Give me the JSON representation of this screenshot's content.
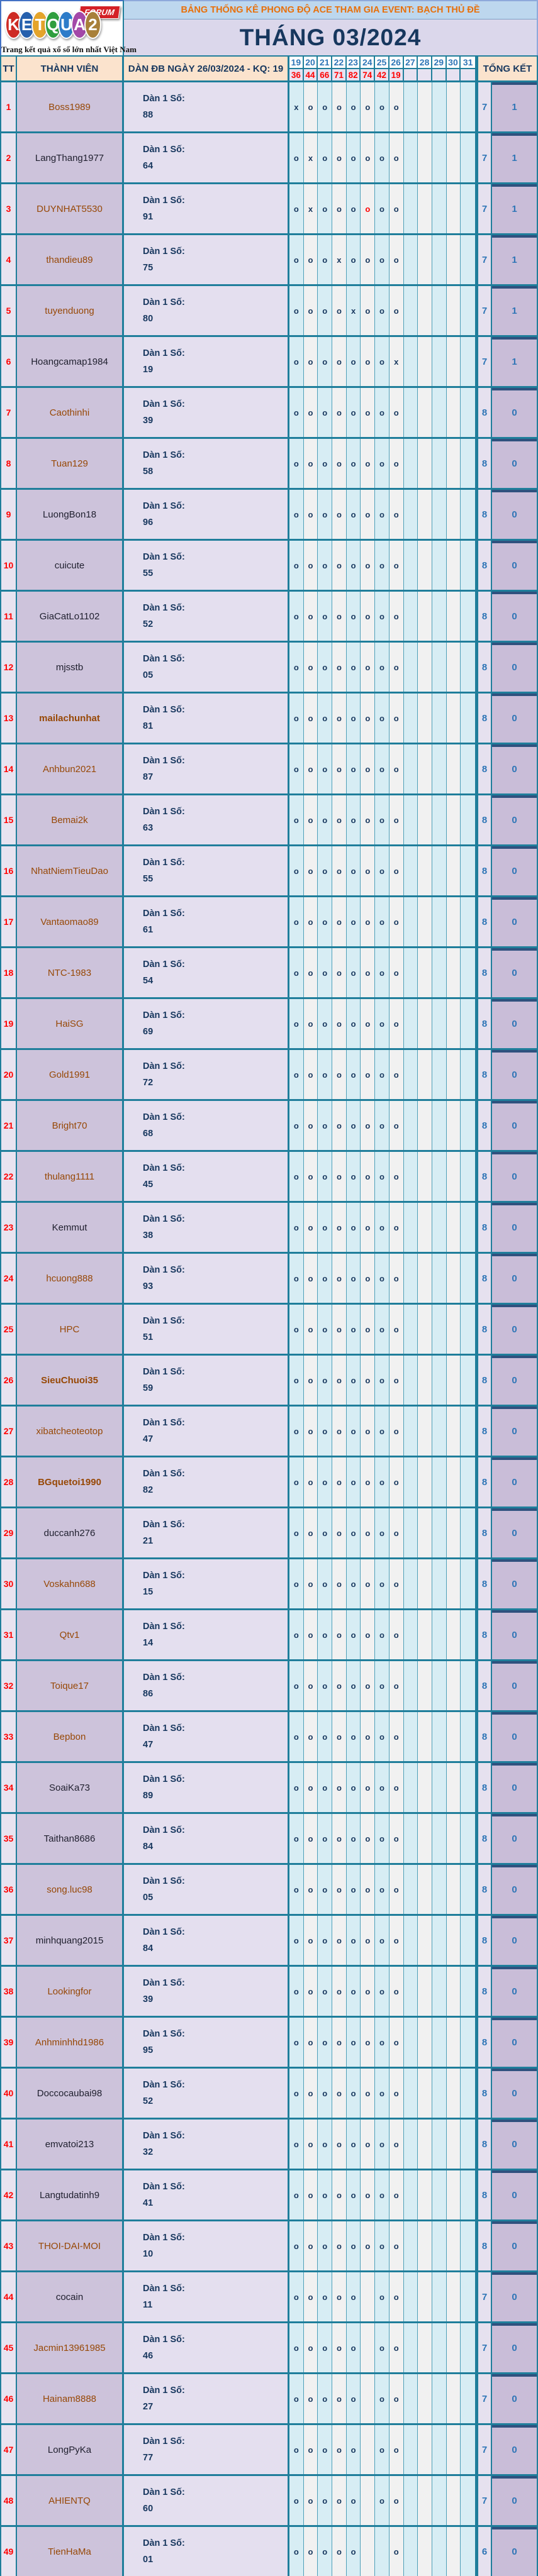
{
  "logo": {
    "letters": [
      {
        "char": "K",
        "color": "#CE2B24"
      },
      {
        "char": "E",
        "color": "#2660AD"
      },
      {
        "char": "T",
        "color": "#E4A42B"
      },
      {
        "char": "Q",
        "color": "#2F9E3E"
      },
      {
        "char": "U",
        "color": "#2D7CC9"
      },
      {
        "char": "A",
        "color": "#A348A8"
      },
      {
        "char": "2",
        "color": "#A8803A"
      }
    ],
    "forum_label": "FORUM",
    "tagline": "Trang kết quả xổ số lớn nhất Việt Nam"
  },
  "banner": {
    "title": "BẢNG THỐNG KÊ PHONG ĐỘ ACE THAM GIA EVENT: BẠCH  THỦ ĐỀ",
    "month": "THÁNG 03/2024"
  },
  "colors": {
    "accent_border": "#1F7E9B",
    "header_bg": "#FBE3CD",
    "banner_title_bg": "#BDD7EE",
    "banner_title_text": "#E8700A",
    "month_bg": "#DBD7EB",
    "navy_text": "#17375E",
    "blue_number": "#2E75B6",
    "red_text": "#FF0000",
    "member_bg": "#CDC3DB",
    "brown": "#974806",
    "dark": "#1F1F2E"
  },
  "table": {
    "headers": {
      "tt": "TT",
      "member": "THÀNH VIÊN",
      "dan": "DÀN ĐB NGÀY 26/03/2024 - KQ: 19",
      "tongket": "TỔNG KẾT"
    },
    "days": [
      "19",
      "20",
      "21",
      "22",
      "23",
      "24",
      "25",
      "26",
      "27",
      "28",
      "29",
      "30",
      "31"
    ],
    "results": [
      "36",
      "44",
      "66",
      "71",
      "82",
      "74",
      "42",
      "19",
      "",
      "",
      "",
      "",
      ""
    ],
    "dan_label": "Dàn 1 Số:",
    "rows": [
      {
        "tt": "1",
        "member": "Boss1989",
        "color": "brown",
        "dan": "88",
        "marks": [
          "x",
          "o",
          "o",
          "o",
          "o",
          "o",
          "o",
          "o"
        ],
        "red": [],
        "tong1": "7",
        "tong2": "1"
      },
      {
        "tt": "2",
        "member": "LangThang1977",
        "color": "dark",
        "dan": "64",
        "marks": [
          "o",
          "x",
          "o",
          "o",
          "o",
          "o",
          "o",
          "o"
        ],
        "red": [],
        "tong1": "7",
        "tong2": "1"
      },
      {
        "tt": "3",
        "member": "DUYNHAT5530",
        "color": "brown",
        "dan": "91",
        "marks": [
          "o",
          "x",
          "o",
          "o",
          "o",
          "o",
          "o",
          "o"
        ],
        "red": [
          5
        ],
        "tong1": "7",
        "tong2": "1"
      },
      {
        "tt": "4",
        "member": "thandieu89",
        "color": "brown",
        "dan": "75",
        "marks": [
          "o",
          "o",
          "o",
          "x",
          "o",
          "o",
          "o",
          "o"
        ],
        "red": [],
        "tong1": "7",
        "tong2": "1"
      },
      {
        "tt": "5",
        "member": "tuyenduong",
        "color": "brown",
        "dan": "80",
        "marks": [
          "o",
          "o",
          "o",
          "o",
          "x",
          "o",
          "o",
          "o"
        ],
        "red": [],
        "tong1": "7",
        "tong2": "1"
      },
      {
        "tt": "6",
        "member": "Hoangcamap1984",
        "color": "dark",
        "dan": "19",
        "marks": [
          "o",
          "o",
          "o",
          "o",
          "o",
          "o",
          "o",
          "x"
        ],
        "red": [],
        "tong1": "7",
        "tong2": "1"
      },
      {
        "tt": "7",
        "member": "Caothinhi",
        "color": "brown",
        "dan": "39",
        "marks": [
          "o",
          "o",
          "o",
          "o",
          "o",
          "o",
          "o",
          "o"
        ],
        "red": [],
        "tong1": "8",
        "tong2": "0"
      },
      {
        "tt": "8",
        "member": "Tuan129",
        "color": "brown",
        "dan": "58",
        "marks": [
          "o",
          "o",
          "o",
          "o",
          "o",
          "o",
          "o",
          "o"
        ],
        "red": [],
        "tong1": "8",
        "tong2": "0"
      },
      {
        "tt": "9",
        "member": "LuongBon18",
        "color": "dark",
        "dan": "96",
        "marks": [
          "o",
          "o",
          "o",
          "o",
          "o",
          "o",
          "o",
          "o"
        ],
        "red": [],
        "tong1": "8",
        "tong2": "0"
      },
      {
        "tt": "10",
        "member": "cuicute",
        "color": "dark",
        "dan": "55",
        "marks": [
          "o",
          "o",
          "o",
          "o",
          "o",
          "o",
          "o",
          "o"
        ],
        "red": [],
        "tong1": "8",
        "tong2": "0"
      },
      {
        "tt": "11",
        "member": "GiaCatLo1102",
        "color": "dark",
        "dan": "52",
        "marks": [
          "o",
          "o",
          "o",
          "o",
          "o",
          "o",
          "o",
          "o"
        ],
        "red": [],
        "tong1": "8",
        "tong2": "0"
      },
      {
        "tt": "12",
        "member": "mjsstb",
        "color": "dark",
        "dan": "05",
        "marks": [
          "o",
          "o",
          "o",
          "o",
          "o",
          "o",
          "o",
          "o"
        ],
        "red": [],
        "tong1": "8",
        "tong2": "0"
      },
      {
        "tt": "13",
        "member": "mailachunhat",
        "color": "brown",
        "bold": true,
        "dan": "81",
        "marks": [
          "o",
          "o",
          "o",
          "o",
          "o",
          "o",
          "o",
          "o"
        ],
        "red": [],
        "tong1": "8",
        "tong2": "0"
      },
      {
        "tt": "14",
        "member": "Anhbun2021",
        "color": "brown",
        "dan": "87",
        "marks": [
          "o",
          "o",
          "o",
          "o",
          "o",
          "o",
          "o",
          "o"
        ],
        "red": [],
        "tong1": "8",
        "tong2": "0"
      },
      {
        "tt": "15",
        "member": "Bemai2k",
        "color": "brown",
        "dan": "63",
        "marks": [
          "o",
          "o",
          "o",
          "o",
          "o",
          "o",
          "o",
          "o"
        ],
        "red": [],
        "tong1": "8",
        "tong2": "0"
      },
      {
        "tt": "16",
        "member": "NhatNiemTieuDao",
        "color": "brown",
        "dan": "55",
        "marks": [
          "o",
          "o",
          "o",
          "o",
          "o",
          "o",
          "o",
          "o"
        ],
        "red": [],
        "tong1": "8",
        "tong2": "0"
      },
      {
        "tt": "17",
        "member": "Vantaomao89",
        "color": "brown",
        "dan": "61",
        "marks": [
          "o",
          "o",
          "o",
          "o",
          "o",
          "o",
          "o",
          "o"
        ],
        "red": [],
        "tong1": "8",
        "tong2": "0"
      },
      {
        "tt": "18",
        "member": "NTC-1983",
        "color": "brown",
        "dan": "54",
        "marks": [
          "o",
          "o",
          "o",
          "o",
          "o",
          "o",
          "o",
          "o"
        ],
        "red": [],
        "tong1": "8",
        "tong2": "0"
      },
      {
        "tt": "19",
        "member": "HaiSG",
        "color": "brown",
        "dan": "69",
        "marks": [
          "o",
          "o",
          "o",
          "o",
          "o",
          "o",
          "o",
          "o"
        ],
        "red": [],
        "tong1": "8",
        "tong2": "0"
      },
      {
        "tt": "20",
        "member": "Gold1991",
        "color": "brown",
        "dan": "72",
        "marks": [
          "o",
          "o",
          "o",
          "o",
          "o",
          "o",
          "o",
          "o"
        ],
        "red": [],
        "tong1": "8",
        "tong2": "0"
      },
      {
        "tt": "21",
        "member": "Bright70",
        "color": "brown",
        "dan": "68",
        "marks": [
          "o",
          "o",
          "o",
          "o",
          "o",
          "o",
          "o",
          "o"
        ],
        "red": [],
        "tong1": "8",
        "tong2": "0"
      },
      {
        "tt": "22",
        "member": "thulang1111",
        "color": "brown",
        "dan": "45",
        "marks": [
          "o",
          "o",
          "o",
          "o",
          "o",
          "o",
          "o",
          "o"
        ],
        "red": [],
        "tong1": "8",
        "tong2": "0"
      },
      {
        "tt": "23",
        "member": "Kemmut",
        "color": "dark",
        "dan": "38",
        "marks": [
          "o",
          "o",
          "o",
          "o",
          "o",
          "o",
          "o",
          "o"
        ],
        "red": [],
        "tong1": "8",
        "tong2": "0"
      },
      {
        "tt": "24",
        "member": "hcuong888",
        "color": "brown",
        "dan": "93",
        "marks": [
          "o",
          "o",
          "o",
          "o",
          "o",
          "o",
          "o",
          "o"
        ],
        "red": [],
        "tong1": "8",
        "tong2": "0"
      },
      {
        "tt": "25",
        "member": "HPC",
        "color": "brown",
        "dan": "51",
        "marks": [
          "o",
          "o",
          "o",
          "o",
          "o",
          "o",
          "o",
          "o"
        ],
        "red": [],
        "tong1": "8",
        "tong2": "0"
      },
      {
        "tt": "26",
        "member": "SieuChuoi35",
        "color": "brown",
        "bold": true,
        "dan": "59",
        "marks": [
          "o",
          "o",
          "o",
          "o",
          "o",
          "o",
          "o",
          "o"
        ],
        "red": [],
        "tong1": "8",
        "tong2": "0"
      },
      {
        "tt": "27",
        "member": "xibatcheoteotop",
        "color": "brown",
        "dan": "47",
        "marks": [
          "o",
          "o",
          "o",
          "o",
          "o",
          "o",
          "o",
          "o"
        ],
        "red": [],
        "tong1": "8",
        "tong2": "0"
      },
      {
        "tt": "28",
        "member": "BGquetoi1990",
        "color": "brown",
        "bold": true,
        "dan": "82",
        "marks": [
          "o",
          "o",
          "o",
          "o",
          "o",
          "o",
          "o",
          "o"
        ],
        "red": [],
        "tong1": "8",
        "tong2": "0"
      },
      {
        "tt": "29",
        "member": "duccanh276",
        "color": "dark",
        "dan": "21",
        "marks": [
          "o",
          "o",
          "o",
          "o",
          "o",
          "o",
          "o",
          "o"
        ],
        "red": [],
        "tong1": "8",
        "tong2": "0"
      },
      {
        "tt": "30",
        "member": "Voskahn688",
        "color": "brown",
        "dan": "15",
        "marks": [
          "o",
          "o",
          "o",
          "o",
          "o",
          "o",
          "o",
          "o"
        ],
        "red": [],
        "tong1": "8",
        "tong2": "0"
      },
      {
        "tt": "31",
        "member": "Qtv1",
        "color": "brown",
        "dan": "14",
        "marks": [
          "o",
          "o",
          "o",
          "o",
          "o",
          "o",
          "o",
          "o"
        ],
        "red": [],
        "tong1": "8",
        "tong2": "0"
      },
      {
        "tt": "32",
        "member": "Toique17",
        "color": "brown",
        "dan": "86",
        "marks": [
          "o",
          "o",
          "o",
          "o",
          "o",
          "o",
          "o",
          "o"
        ],
        "red": [],
        "tong1": "8",
        "tong2": "0"
      },
      {
        "tt": "33",
        "member": "Bepbon",
        "color": "brown",
        "dan": "47",
        "marks": [
          "o",
          "o",
          "o",
          "o",
          "o",
          "o",
          "o",
          "o"
        ],
        "red": [],
        "tong1": "8",
        "tong2": "0"
      },
      {
        "tt": "34",
        "member": "SoaiKa73",
        "color": "dark",
        "dan": "89",
        "marks": [
          "o",
          "o",
          "o",
          "o",
          "o",
          "o",
          "o",
          "o"
        ],
        "red": [],
        "tong1": "8",
        "tong2": "0"
      },
      {
        "tt": "35",
        "member": "Taithan8686",
        "color": "dark",
        "dan": "84",
        "marks": [
          "o",
          "o",
          "o",
          "o",
          "o",
          "o",
          "o",
          "o"
        ],
        "red": [],
        "tong1": "8",
        "tong2": "0"
      },
      {
        "tt": "36",
        "member": "song.luc98",
        "color": "brown",
        "dan": "05",
        "marks": [
          "o",
          "o",
          "o",
          "o",
          "o",
          "o",
          "o",
          "o"
        ],
        "red": [],
        "tong1": "8",
        "tong2": "0"
      },
      {
        "tt": "37",
        "member": "minhquang2015",
        "color": "dark",
        "dan": "84",
        "marks": [
          "o",
          "o",
          "o",
          "o",
          "o",
          "o",
          "o",
          "o"
        ],
        "red": [],
        "tong1": "8",
        "tong2": "0"
      },
      {
        "tt": "38",
        "member": "Lookingfor",
        "color": "brown",
        "dan": "39",
        "marks": [
          "o",
          "o",
          "o",
          "o",
          "o",
          "o",
          "o",
          "o"
        ],
        "red": [],
        "tong1": "8",
        "tong2": "0"
      },
      {
        "tt": "39",
        "member": "Anhminhhd1986",
        "color": "brown",
        "dan": "95",
        "marks": [
          "o",
          "o",
          "o",
          "o",
          "o",
          "o",
          "o",
          "o"
        ],
        "red": [],
        "tong1": "8",
        "tong2": "0"
      },
      {
        "tt": "40",
        "member": "Doccocaubai98",
        "color": "dark",
        "dan": "52",
        "marks": [
          "o",
          "o",
          "o",
          "o",
          "o",
          "o",
          "o",
          "o"
        ],
        "red": [],
        "tong1": "8",
        "tong2": "0"
      },
      {
        "tt": "41",
        "member": "emvatoi213",
        "color": "dark",
        "dan": "32",
        "marks": [
          "o",
          "o",
          "o",
          "o",
          "o",
          "o",
          "o",
          "o"
        ],
        "red": [],
        "tong1": "8",
        "tong2": "0"
      },
      {
        "tt": "42",
        "member": "Langtudatinh9",
        "color": "dark",
        "dan": "41",
        "marks": [
          "o",
          "o",
          "o",
          "o",
          "o",
          "o",
          "o",
          "o"
        ],
        "red": [],
        "tong1": "8",
        "tong2": "0"
      },
      {
        "tt": "43",
        "member": "THOI-DAI-MOI",
        "color": "brown",
        "dan": "10",
        "marks": [
          "o",
          "o",
          "o",
          "o",
          "o",
          "o",
          "o",
          "o"
        ],
        "red": [],
        "tong1": "8",
        "tong2": "0"
      },
      {
        "tt": "44",
        "member": "cocain",
        "color": "dark",
        "dan": "11",
        "marks": [
          "o",
          "o",
          "o",
          "o",
          "o",
          "",
          "o",
          "o"
        ],
        "red": [],
        "tong1": "7",
        "tong2": "0"
      },
      {
        "tt": "45",
        "member": "Jacmin13961985",
        "color": "brown",
        "dan": "46",
        "marks": [
          "o",
          "o",
          "o",
          "o",
          "o",
          "",
          "o",
          "o"
        ],
        "red": [],
        "tong1": "7",
        "tong2": "0"
      },
      {
        "tt": "46",
        "member": "Hainam8888",
        "color": "brown",
        "dan": "27",
        "marks": [
          "o",
          "o",
          "o",
          "o",
          "o",
          "",
          "o",
          "o"
        ],
        "red": [],
        "tong1": "7",
        "tong2": "0"
      },
      {
        "tt": "47",
        "member": "LongPyKa",
        "color": "dark",
        "dan": "77",
        "marks": [
          "o",
          "o",
          "o",
          "o",
          "o",
          "",
          "o",
          "o"
        ],
        "red": [],
        "tong1": "7",
        "tong2": "0"
      },
      {
        "tt": "48",
        "member": "AHIENTQ",
        "color": "brown",
        "dan": "60",
        "marks": [
          "o",
          "o",
          "o",
          "o",
          "o",
          "",
          "o",
          "o"
        ],
        "red": [],
        "tong1": "7",
        "tong2": "0"
      },
      {
        "tt": "49",
        "member": "TienHaMa",
        "color": "brown",
        "dan": "01",
        "marks": [
          "o",
          "o",
          "o",
          "o",
          "o",
          "",
          "",
          "o"
        ],
        "red": [],
        "tong1": "6",
        "tong2": "0"
      }
    ]
  }
}
